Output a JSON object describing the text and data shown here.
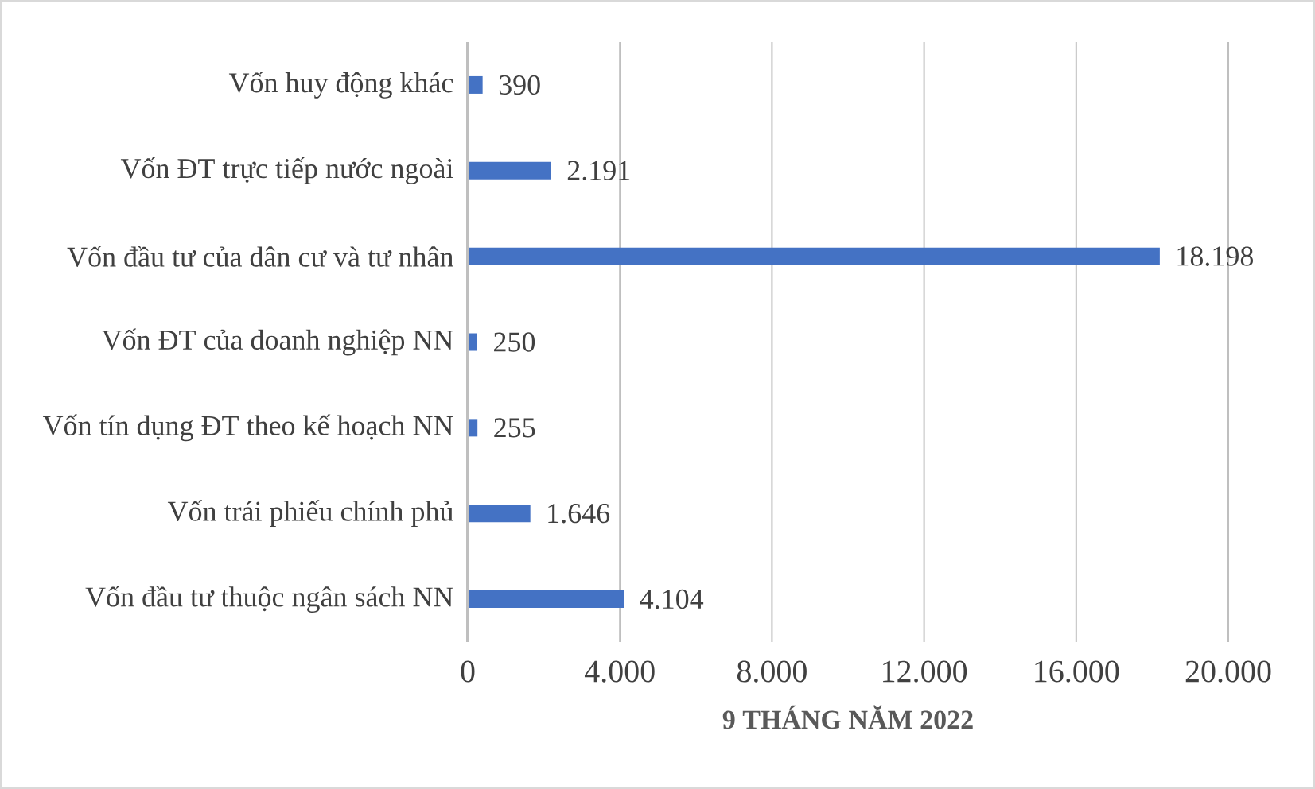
{
  "chart_data": {
    "type": "bar",
    "orientation": "horizontal",
    "xlabel": "9 THÁNG NĂM 2022",
    "categories": [
      "Vốn huy động khác",
      "Vốn ĐT trực tiếp nước ngoài",
      "Vốn đầu tư của dân cư và tư nhân",
      "Vốn ĐT của doanh nghiệp NN",
      "Vốn tín dụng ĐT theo kế hoạch NN",
      "Vốn trái phiếu chính phủ",
      "Vốn đầu tư thuộc ngân sách NN"
    ],
    "values": [
      390,
      2191,
      18198,
      250,
      255,
      1646,
      4104
    ],
    "value_labels": [
      "390",
      "2.191",
      "18.198",
      "250",
      "255",
      "1.646",
      "4.104"
    ],
    "color": "#4472c4",
    "xlim": [
      0,
      20000
    ],
    "xticks": [
      0,
      {
        "value": 4000,
        "label": "4.000"
      },
      {
        "value": 8000,
        "label": "8.000"
      },
      {
        "value": 12000,
        "label": "12.000"
      },
      {
        "value": 16000,
        "label": "16.000"
      },
      {
        "value": 20000,
        "label": "20.000"
      }
    ],
    "grid": "x"
  }
}
